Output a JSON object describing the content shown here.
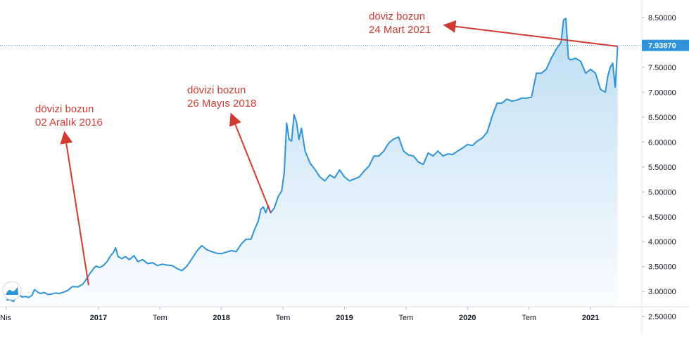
{
  "chart_data": {
    "type": "area",
    "series_color": "#2e93d8",
    "annotation_color": "#d23a30",
    "y_ticks": [
      "2.50000",
      "3.00000",
      "3.50000",
      "4.00000",
      "4.50000",
      "5.00000",
      "5.50000",
      "6.00000",
      "6.50000",
      "7.00000",
      "7.50000",
      "8.00000",
      "8.50000"
    ],
    "y_range": [
      2.2,
      8.85
    ],
    "x_ticks": [
      {
        "label": "Nis",
        "date": "2016.25",
        "bold": false
      },
      {
        "label": "2017",
        "date": "2017.0",
        "bold": true
      },
      {
        "label": "Tem",
        "date": "2017.5",
        "bold": false
      },
      {
        "label": "2018",
        "date": "2018.0",
        "bold": true
      },
      {
        "label": "Tem",
        "date": "2018.5",
        "bold": false
      },
      {
        "label": "2019",
        "date": "2019.0",
        "bold": true
      },
      {
        "label": "Tem",
        "date": "2019.5",
        "bold": false
      },
      {
        "label": "2020",
        "date": "2020.0",
        "bold": true
      },
      {
        "label": "Tem",
        "date": "2020.5",
        "bold": false
      },
      {
        "label": "2021",
        "date": "2021.0",
        "bold": true
      }
    ],
    "current_value": "7.93870",
    "current_value_color": "#2e93d8",
    "annotations": [
      {
        "lines": [
          "dövizi bozun",
          "02 Aralık 2016"
        ],
        "date": 2016.92,
        "value": 3.13
      },
      {
        "lines": [
          "dövizi bozun",
          "26 Mayıs 2018"
        ],
        "date": 2018.4,
        "value": 4.58
      },
      {
        "lines": [
          "döviz bozun",
          "24 Mart 2021"
        ],
        "date": 2021.22,
        "value": 7.92
      }
    ],
    "series": [
      {
        "values": [
          [
            2016.25,
            2.83
          ],
          [
            2016.28,
            2.84
          ],
          [
            2016.31,
            2.8
          ],
          [
            2016.33,
            2.9
          ],
          [
            2016.36,
            2.92
          ],
          [
            2016.38,
            2.89
          ],
          [
            2016.41,
            2.9
          ],
          [
            2016.43,
            2.88
          ],
          [
            2016.46,
            2.92
          ],
          [
            2016.48,
            3.04
          ],
          [
            2016.51,
            2.98
          ],
          [
            2016.53,
            2.96
          ],
          [
            2016.56,
            2.98
          ],
          [
            2016.59,
            2.94
          ],
          [
            2016.62,
            2.95
          ],
          [
            2016.65,
            2.97
          ],
          [
            2016.68,
            2.96
          ],
          [
            2016.72,
            2.99
          ],
          [
            2016.75,
            3.02
          ],
          [
            2016.79,
            3.1
          ],
          [
            2016.83,
            3.09
          ],
          [
            2016.87,
            3.14
          ],
          [
            2016.9,
            3.24
          ],
          [
            2016.93,
            3.36
          ],
          [
            2016.96,
            3.46
          ],
          [
            2016.98,
            3.51
          ],
          [
            2017.01,
            3.48
          ],
          [
            2017.04,
            3.52
          ],
          [
            2017.07,
            3.6
          ],
          [
            2017.1,
            3.72
          ],
          [
            2017.12,
            3.78
          ],
          [
            2017.14,
            3.88
          ],
          [
            2017.16,
            3.7
          ],
          [
            2017.19,
            3.66
          ],
          [
            2017.22,
            3.7
          ],
          [
            2017.25,
            3.64
          ],
          [
            2017.29,
            3.72
          ],
          [
            2017.32,
            3.6
          ],
          [
            2017.36,
            3.64
          ],
          [
            2017.4,
            3.56
          ],
          [
            2017.44,
            3.58
          ],
          [
            2017.48,
            3.52
          ],
          [
            2017.52,
            3.55
          ],
          [
            2017.56,
            3.53
          ],
          [
            2017.6,
            3.52
          ],
          [
            2017.64,
            3.46
          ],
          [
            2017.68,
            3.42
          ],
          [
            2017.72,
            3.51
          ],
          [
            2017.76,
            3.66
          ],
          [
            2017.8,
            3.81
          ],
          [
            2017.84,
            3.92
          ],
          [
            2017.88,
            3.84
          ],
          [
            2017.92,
            3.8
          ],
          [
            2017.96,
            3.77
          ],
          [
            2018.0,
            3.76
          ],
          [
            2018.04,
            3.79
          ],
          [
            2018.08,
            3.82
          ],
          [
            2018.12,
            3.8
          ],
          [
            2018.16,
            3.95
          ],
          [
            2018.2,
            4.05
          ],
          [
            2018.24,
            4.05
          ],
          [
            2018.27,
            4.25
          ],
          [
            2018.3,
            4.42
          ],
          [
            2018.32,
            4.65
          ],
          [
            2018.34,
            4.7
          ],
          [
            2018.36,
            4.58
          ],
          [
            2018.38,
            4.72
          ],
          [
            2018.4,
            4.58
          ],
          [
            2018.43,
            4.68
          ],
          [
            2018.46,
            4.9
          ],
          [
            2018.49,
            5.02
          ],
          [
            2018.51,
            5.38
          ],
          [
            2018.53,
            6.38
          ],
          [
            2018.55,
            6.05
          ],
          [
            2018.57,
            6.02
          ],
          [
            2018.59,
            6.55
          ],
          [
            2018.61,
            6.4
          ],
          [
            2018.63,
            6.05
          ],
          [
            2018.65,
            6.28
          ],
          [
            2018.68,
            5.82
          ],
          [
            2018.72,
            5.58
          ],
          [
            2018.76,
            5.45
          ],
          [
            2018.8,
            5.3
          ],
          [
            2018.84,
            5.22
          ],
          [
            2018.88,
            5.34
          ],
          [
            2018.92,
            5.28
          ],
          [
            2018.96,
            5.44
          ],
          [
            2019.0,
            5.3
          ],
          [
            2019.04,
            5.22
          ],
          [
            2019.08,
            5.26
          ],
          [
            2019.12,
            5.3
          ],
          [
            2019.16,
            5.42
          ],
          [
            2019.2,
            5.52
          ],
          [
            2019.24,
            5.72
          ],
          [
            2019.28,
            5.72
          ],
          [
            2019.32,
            5.82
          ],
          [
            2019.36,
            5.98
          ],
          [
            2019.4,
            6.06
          ],
          [
            2019.44,
            6.1
          ],
          [
            2019.48,
            5.82
          ],
          [
            2019.52,
            5.74
          ],
          [
            2019.56,
            5.72
          ],
          [
            2019.6,
            5.6
          ],
          [
            2019.64,
            5.55
          ],
          [
            2019.68,
            5.78
          ],
          [
            2019.72,
            5.72
          ],
          [
            2019.76,
            5.82
          ],
          [
            2019.8,
            5.72
          ],
          [
            2019.84,
            5.76
          ],
          [
            2019.88,
            5.75
          ],
          [
            2019.92,
            5.82
          ],
          [
            2019.96,
            5.88
          ],
          [
            2020.0,
            5.95
          ],
          [
            2020.04,
            5.93
          ],
          [
            2020.08,
            6.02
          ],
          [
            2020.12,
            6.08
          ],
          [
            2020.16,
            6.2
          ],
          [
            2020.2,
            6.52
          ],
          [
            2020.24,
            6.78
          ],
          [
            2020.28,
            6.78
          ],
          [
            2020.32,
            6.86
          ],
          [
            2020.36,
            6.82
          ],
          [
            2020.4,
            6.84
          ],
          [
            2020.44,
            6.88
          ],
          [
            2020.48,
            6.88
          ],
          [
            2020.52,
            6.9
          ],
          [
            2020.56,
            7.38
          ],
          [
            2020.6,
            7.38
          ],
          [
            2020.64,
            7.46
          ],
          [
            2020.68,
            7.68
          ],
          [
            2020.72,
            7.86
          ],
          [
            2020.76,
            8.0
          ],
          [
            2020.78,
            8.45
          ],
          [
            2020.8,
            8.48
          ],
          [
            2020.82,
            7.68
          ],
          [
            2020.84,
            7.65
          ],
          [
            2020.88,
            7.68
          ],
          [
            2020.92,
            7.62
          ],
          [
            2020.96,
            7.38
          ],
          [
            2021.0,
            7.46
          ],
          [
            2021.04,
            7.38
          ],
          [
            2021.08,
            7.06
          ],
          [
            2021.12,
            7.0
          ],
          [
            2021.14,
            7.32
          ],
          [
            2021.16,
            7.5
          ],
          [
            2021.18,
            7.58
          ],
          [
            2021.2,
            7.1
          ],
          [
            2021.22,
            7.92
          ]
        ]
      }
    ]
  }
}
